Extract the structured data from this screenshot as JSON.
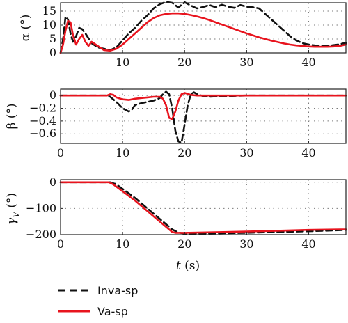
{
  "colors": {
    "inva": "#111111",
    "va": "#e8141e"
  },
  "xlabel_var": "t",
  "xlabel_unit": " (s)",
  "legend": [
    {
      "key": "inva",
      "label": "Inva-sp"
    },
    {
      "key": "va",
      "label": "Va-sp"
    }
  ],
  "chart_data": [
    {
      "type": "line",
      "ylabel": "α (°)",
      "xlim": [
        0,
        46
      ],
      "ylim": [
        0,
        18
      ],
      "xticks": [
        10,
        20,
        30,
        40
      ],
      "xtick_labels": [
        "10",
        "20",
        "30",
        "40"
      ],
      "yticks": [
        0,
        5,
        10,
        15
      ],
      "ytick_labels": [
        "0",
        "5",
        "10",
        "15"
      ],
      "grid": true,
      "series": [
        {
          "name": "Inva-sp",
          "color": "#111111",
          "style": "dashed",
          "x": [
            0,
            0.4,
            0.8,
            1.2,
            1.6,
            2.0,
            2.5,
            3.0,
            3.5,
            4.0,
            5.0,
            6.0,
            7.0,
            8.0,
            9.0,
            10,
            11,
            12,
            13,
            14,
            15,
            16,
            17,
            18,
            19,
            20,
            21,
            22,
            23,
            24,
            25,
            26,
            27,
            28,
            29,
            30,
            31,
            32,
            33,
            34,
            35,
            36,
            37,
            38,
            39,
            40,
            41,
            42,
            43,
            44,
            45,
            45.5,
            46
          ],
          "y": [
            0,
            5,
            13,
            12,
            7,
            4,
            6,
            9,
            8.5,
            7,
            3.5,
            2,
            1.5,
            1,
            2,
            4.5,
            7,
            9,
            11.5,
            13.5,
            16,
            17.5,
            18.3,
            18,
            16.3,
            18.2,
            17,
            16,
            16.5,
            17.2,
            16.4,
            17.3,
            16.6,
            16.2,
            17.2,
            16.6,
            16.4,
            16,
            14,
            12,
            10,
            8,
            6,
            4.5,
            3.5,
            3,
            2.7,
            2.6,
            2.6,
            2.8,
            3.1,
            3.4,
            3.5
          ]
        },
        {
          "name": "Va-sp",
          "color": "#e8141e",
          "style": "solid",
          "x": [
            0,
            0.4,
            0.8,
            1.2,
            1.6,
            2.0,
            2.5,
            3.0,
            3.5,
            4.0,
            4.5,
            5.0,
            6.0,
            7.0,
            8.0,
            9.0,
            10,
            11,
            12,
            13,
            14,
            15,
            16,
            17,
            18,
            19,
            20,
            21,
            22,
            23,
            24,
            25,
            26,
            27,
            28,
            29,
            30,
            31,
            32,
            33,
            34,
            35,
            36,
            37,
            38,
            39,
            40,
            41,
            42,
            43,
            44,
            45,
            46
          ],
          "y": [
            0,
            3,
            8,
            11.5,
            11,
            6.5,
            3,
            5,
            6.5,
            4,
            2.5,
            4,
            2.5,
            1,
            0.8,
            1.5,
            3,
            5,
            7,
            9,
            11,
            12.5,
            13.5,
            14,
            14.2,
            14.2,
            14,
            13.6,
            13.1,
            12.5,
            11.8,
            11,
            10.2,
            9.4,
            8.6,
            7.8,
            7,
            6.3,
            5.6,
            5,
            4.4,
            3.9,
            3.4,
            3,
            2.7,
            2.5,
            2.3,
            2.2,
            2.2,
            2.2,
            2.3,
            2.5,
            3
          ]
        }
      ]
    },
    {
      "type": "line",
      "ylabel": "β (°)",
      "xlim": [
        0,
        46
      ],
      "ylim": [
        -0.75,
        0.1
      ],
      "xticks": [
        0,
        10,
        20,
        30,
        40
      ],
      "xtick_labels": [
        "0",
        "10",
        "20",
        "30",
        "40"
      ],
      "yticks": [
        -0.6,
        -0.4,
        -0.2,
        0
      ],
      "ytick_labels": [
        "−0.6",
        "−0.4",
        "−0.2",
        "0"
      ],
      "grid": true,
      "series": [
        {
          "name": "Inva-sp",
          "color": "#111111",
          "style": "dashed",
          "x": [
            0,
            7.5,
            8,
            9,
            10,
            11,
            11.5,
            12,
            13,
            14,
            15,
            16,
            16.5,
            17,
            17.5,
            18,
            18.5,
            19,
            19.5,
            20,
            20.5,
            21,
            21.5,
            22,
            23,
            24,
            26,
            30,
            40,
            46
          ],
          "y": [
            0,
            0,
            -0.02,
            -0.1,
            -0.2,
            -0.25,
            -0.22,
            -0.15,
            -0.12,
            -0.1,
            -0.08,
            -0.04,
            0.02,
            0.06,
            0.02,
            -0.2,
            -0.55,
            -0.72,
            -0.74,
            -0.45,
            -0.15,
            0.02,
            0.05,
            0.02,
            -0.01,
            -0.02,
            -0.01,
            0,
            0,
            0
          ]
        },
        {
          "name": "Va-sp",
          "color": "#e8141e",
          "style": "solid",
          "x": [
            0,
            7.5,
            8,
            8.5,
            9,
            10,
            11,
            12,
            13,
            14,
            15,
            16,
            16.5,
            17,
            17.5,
            18,
            18.5,
            19,
            19.5,
            20,
            21,
            22,
            23,
            24,
            30,
            40,
            46
          ],
          "y": [
            0,
            0,
            0.02,
            0.01,
            -0.03,
            -0.06,
            -0.07,
            -0.05,
            -0.04,
            -0.03,
            -0.02,
            -0.02,
            -0.05,
            -0.15,
            -0.35,
            -0.37,
            -0.25,
            -0.08,
            0.02,
            0.04,
            0.01,
            0,
            0,
            0,
            0,
            0,
            0
          ]
        }
      ]
    },
    {
      "type": "line",
      "ylabel": "γ",
      "ylabel_sub": "V",
      "ylabel_unit": " (°)",
      "xlim": [
        0,
        46
      ],
      "ylim": [
        -200,
        10
      ],
      "xticks": [
        0,
        10,
        20,
        30,
        40
      ],
      "xtick_labels": [
        "0",
        "10",
        "20",
        "30",
        "40"
      ],
      "yticks": [
        -200,
        -100,
        0
      ],
      "ytick_labels": [
        "−200",
        "−100",
        "0"
      ],
      "grid": true,
      "series": [
        {
          "name": "Inva-sp",
          "color": "#111111",
          "style": "dashed",
          "x": [
            0,
            8,
            9,
            12,
            15,
            18,
            19,
            20,
            25,
            30,
            35,
            40,
            45,
            46
          ],
          "y": [
            0,
            0,
            -8,
            -60,
            -120,
            -180,
            -192,
            -196,
            -195,
            -193,
            -190,
            -187,
            -183,
            -182
          ]
        },
        {
          "name": "Va-sp",
          "color": "#e8141e",
          "style": "solid",
          "x": [
            0,
            7.8,
            8.5,
            12,
            15,
            18,
            18.5,
            20,
            25,
            30,
            35,
            40,
            45,
            46
          ],
          "y": [
            0,
            0,
            -8,
            -70,
            -130,
            -190,
            -193,
            -193,
            -191,
            -188,
            -185,
            -182,
            -180,
            -180
          ]
        }
      ]
    }
  ]
}
